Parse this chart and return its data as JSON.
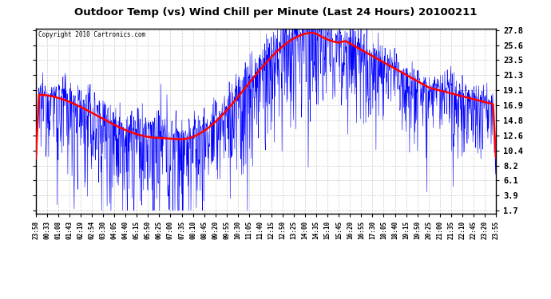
{
  "title": "Outdoor Temp (vs) Wind Chill per Minute (Last 24 Hours) 20100211",
  "copyright_text": "Copyright 2010 Cartronics.com",
  "yticks": [
    1.7,
    3.9,
    6.1,
    8.2,
    10.4,
    12.6,
    14.8,
    16.9,
    19.1,
    21.3,
    23.5,
    25.6,
    27.8
  ],
  "ymin": 1.7,
  "ymax": 27.8,
  "grid_color": "#cccccc",
  "x_labels": [
    "23:58",
    "00:33",
    "01:08",
    "01:43",
    "02:19",
    "02:54",
    "03:30",
    "04:05",
    "04:40",
    "05:15",
    "05:50",
    "06:25",
    "07:00",
    "07:35",
    "08:10",
    "08:45",
    "09:20",
    "09:55",
    "10:30",
    "11:05",
    "11:40",
    "12:15",
    "12:50",
    "13:25",
    "14:00",
    "14:35",
    "15:10",
    "15:45",
    "16:20",
    "16:55",
    "17:30",
    "18:05",
    "18:40",
    "19:15",
    "19:50",
    "20:25",
    "21:00",
    "21:35",
    "22:10",
    "22:45",
    "23:20",
    "23:55"
  ],
  "n_points": 1440
}
